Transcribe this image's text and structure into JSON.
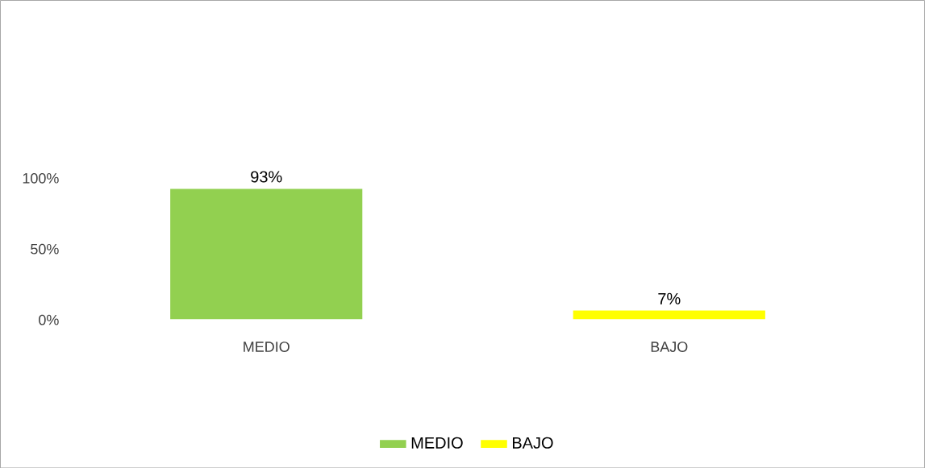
{
  "chart_data": {
    "type": "bar",
    "categories": [
      "MEDIO",
      "BAJO"
    ],
    "series": [
      {
        "name": "MEDIO",
        "color": "#92d050",
        "values": [
          93,
          null
        ],
        "value_labels": [
          "93%",
          null
        ]
      },
      {
        "name": "BAJO",
        "color": "#ffff00",
        "values": [
          null,
          7
        ],
        "value_labels": [
          null,
          "7%"
        ]
      }
    ],
    "ylim": [
      0,
      100
    ],
    "yticks": [
      {
        "value": 0,
        "label": "0%"
      },
      {
        "value": 50,
        "label": "50%"
      },
      {
        "value": 100,
        "label": "100%"
      }
    ],
    "legend": "bottom",
    "grid": false
  }
}
